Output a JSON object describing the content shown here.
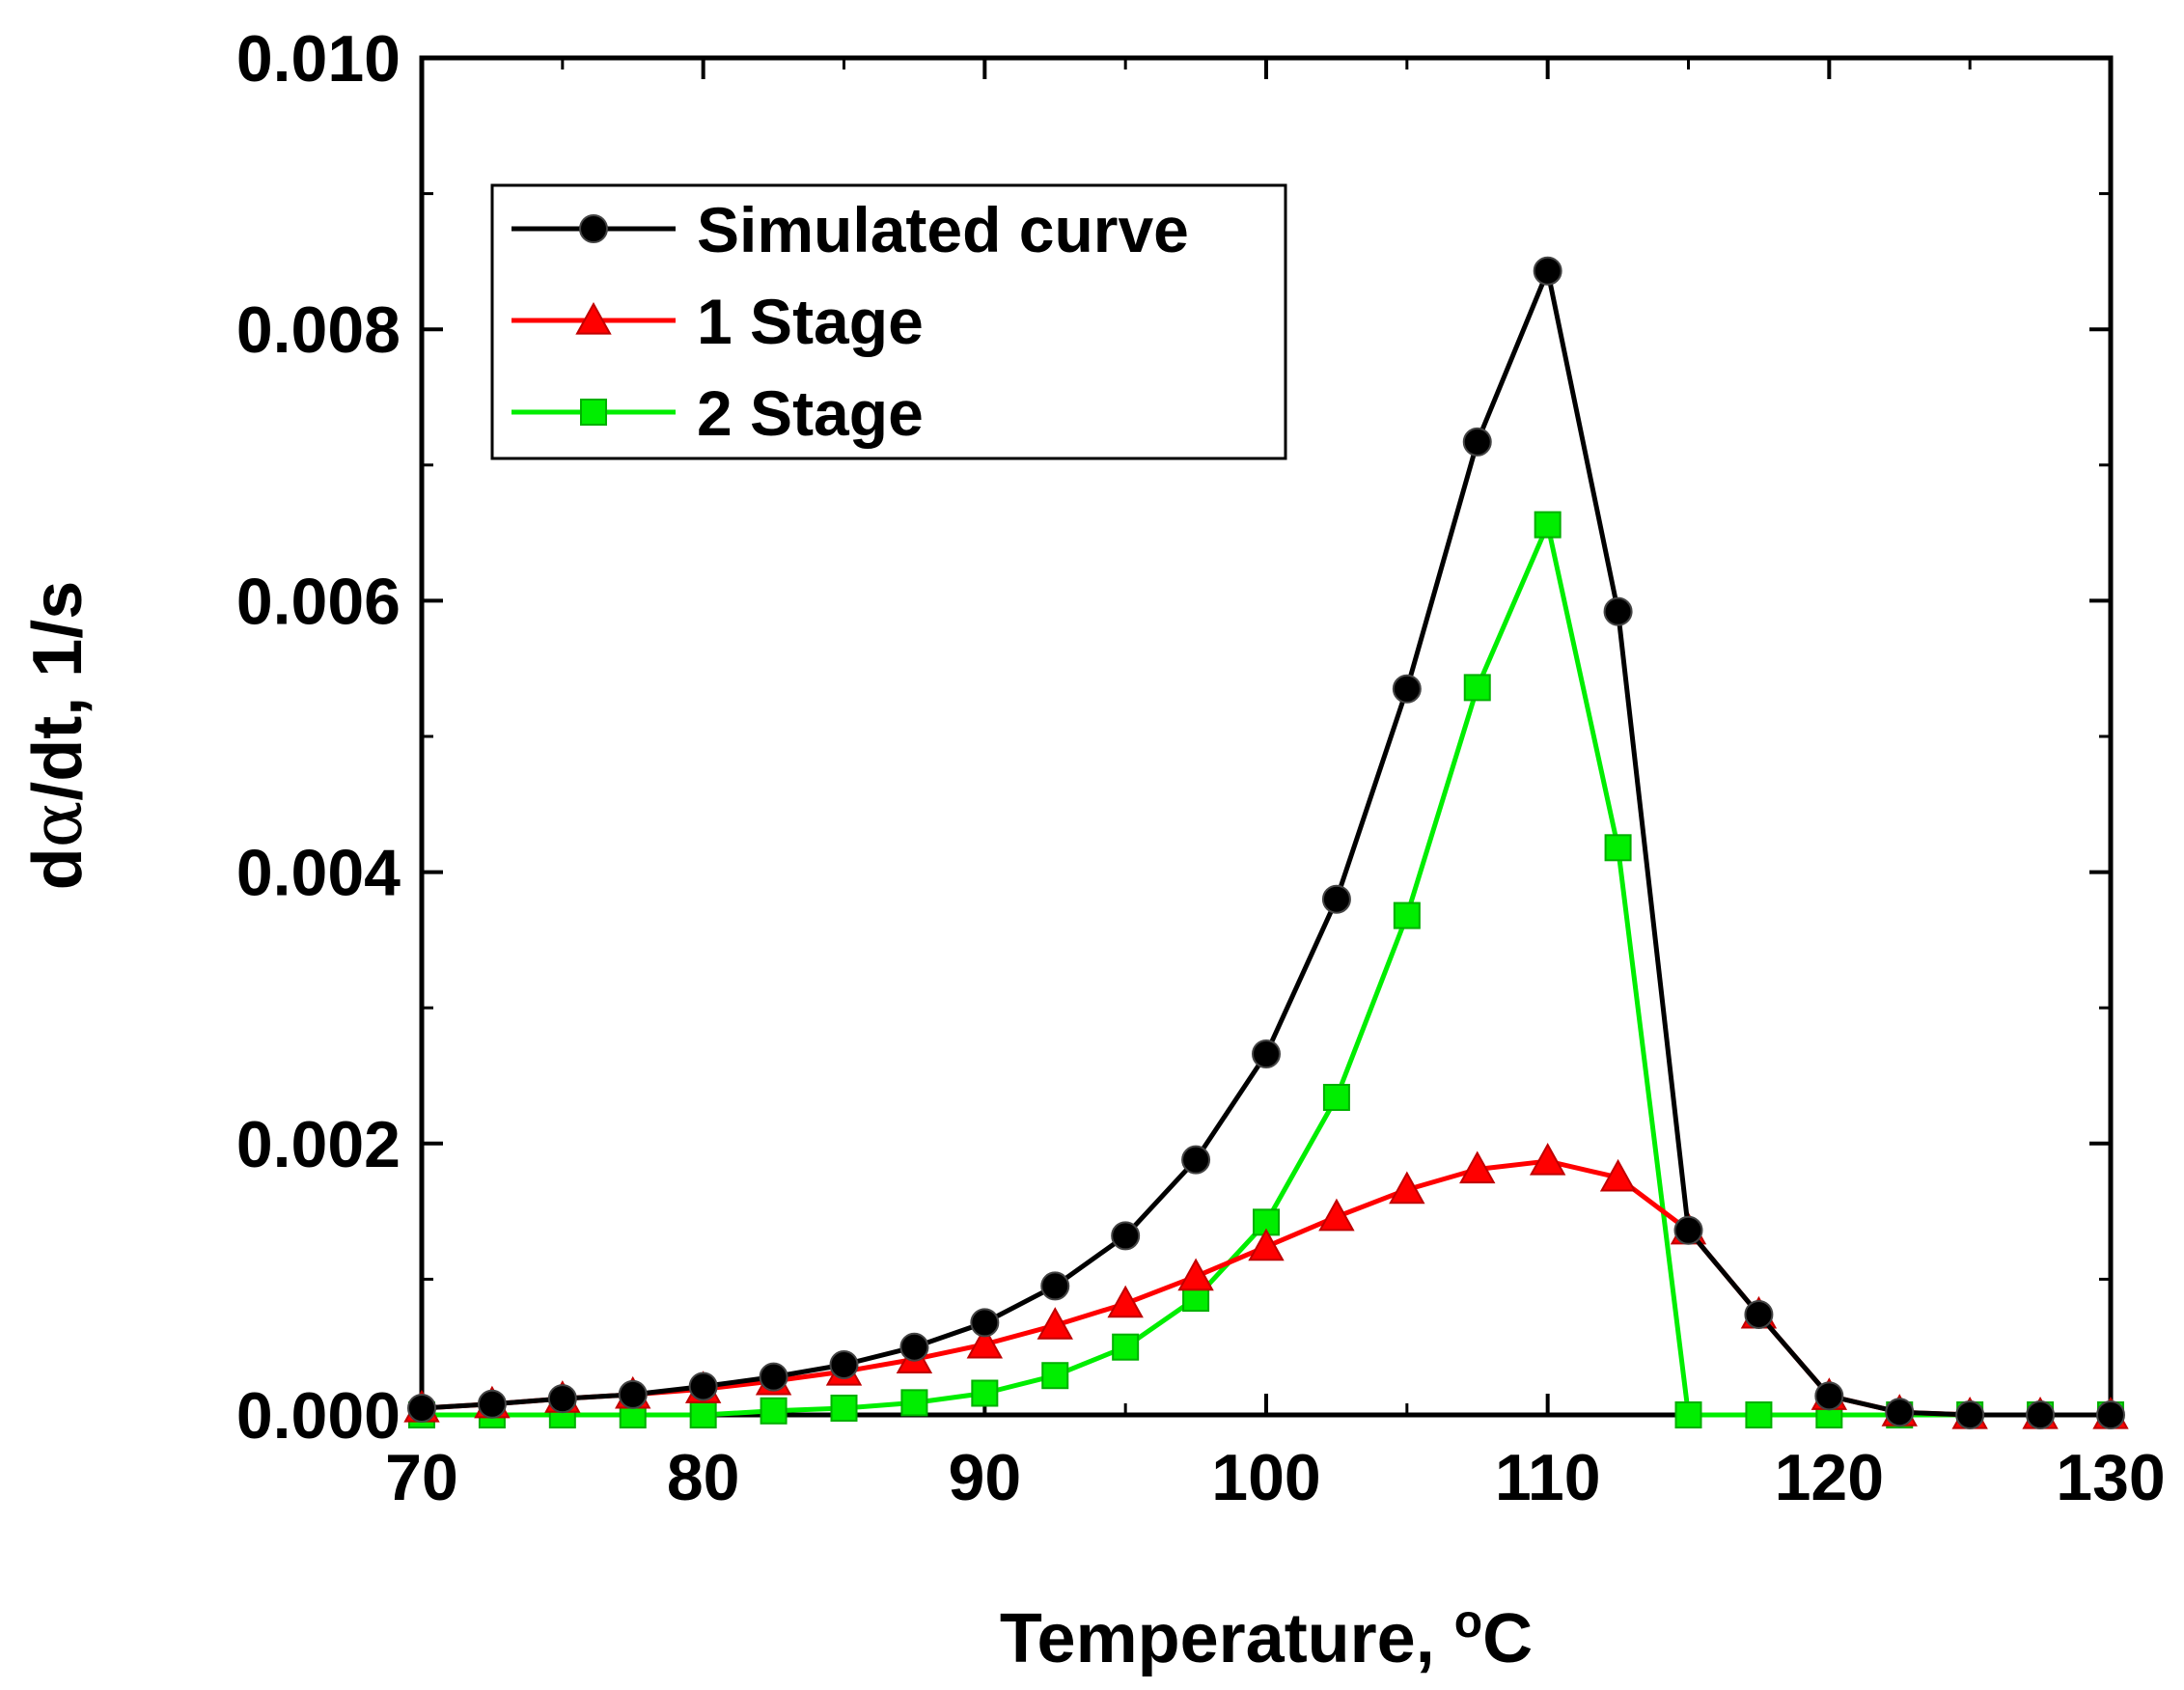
{
  "chart_data": {
    "type": "line",
    "title": "",
    "xlabel": "Temperature, °C",
    "xlabel_parts": {
      "prefix": "Temperature, ",
      "degree": "o",
      "unit": "C"
    },
    "ylabel": "dα/dt, 1/s",
    "ylabel_parts": {
      "d": "d",
      "alpha": "α",
      "rest": "/dt, 1/s"
    },
    "xlim": [
      70,
      130
    ],
    "ylim": [
      0,
      0.01
    ],
    "xticks": [
      "70",
      "80",
      "90",
      "100",
      "110",
      "120",
      "130"
    ],
    "yticks": [
      "0.000",
      "0.002",
      "0.004",
      "0.006",
      "0.008",
      "0.010"
    ],
    "grid": false,
    "legend_position": "top-left",
    "x": [
      70,
      72.5,
      75,
      77.5,
      80,
      82.5,
      85,
      87.5,
      90,
      92.5,
      95,
      97.5,
      100,
      102.5,
      105,
      107.5,
      110,
      112.5,
      115,
      117.5,
      120,
      122.5,
      125,
      127.5,
      130
    ],
    "series": [
      {
        "name": "Simulated curve",
        "color": "#000000",
        "marker": "circle",
        "values": [
          5e-05,
          8e-05,
          0.00012,
          0.00015,
          0.00021,
          0.00028,
          0.00037,
          0.0005,
          0.00068,
          0.00095,
          0.00132,
          0.00188,
          0.00266,
          0.0038,
          0.00535,
          0.00717,
          0.00843,
          0.00592,
          0.00136,
          0.00074,
          0.00014,
          2e-05,
          0.0,
          0.0,
          0.0
        ]
      },
      {
        "name": "1 Stage",
        "color": "#ff0000",
        "marker": "triangle",
        "values": [
          5e-05,
          8e-05,
          0.00012,
          0.00015,
          0.00019,
          0.00025,
          0.00032,
          0.00041,
          0.00052,
          0.00066,
          0.00082,
          0.00102,
          0.00124,
          0.00146,
          0.00166,
          0.00181,
          0.00187,
          0.00175,
          0.00136,
          0.00074,
          0.00014,
          2e-05,
          0.0,
          0.0,
          0.0
        ]
      },
      {
        "name": "2 Stage",
        "color": "#00ee00",
        "marker": "square",
        "values": [
          0.0,
          0.0,
          0.0,
          0.0,
          0.0,
          3e-05,
          5e-05,
          9e-05,
          0.00016,
          0.00029,
          0.0005,
          0.00086,
          0.00142,
          0.00234,
          0.00368,
          0.00536,
          0.00656,
          0.00418,
          0.0,
          0.0,
          0.0,
          0.0,
          0.0,
          0.0,
          0.0
        ]
      }
    ]
  }
}
